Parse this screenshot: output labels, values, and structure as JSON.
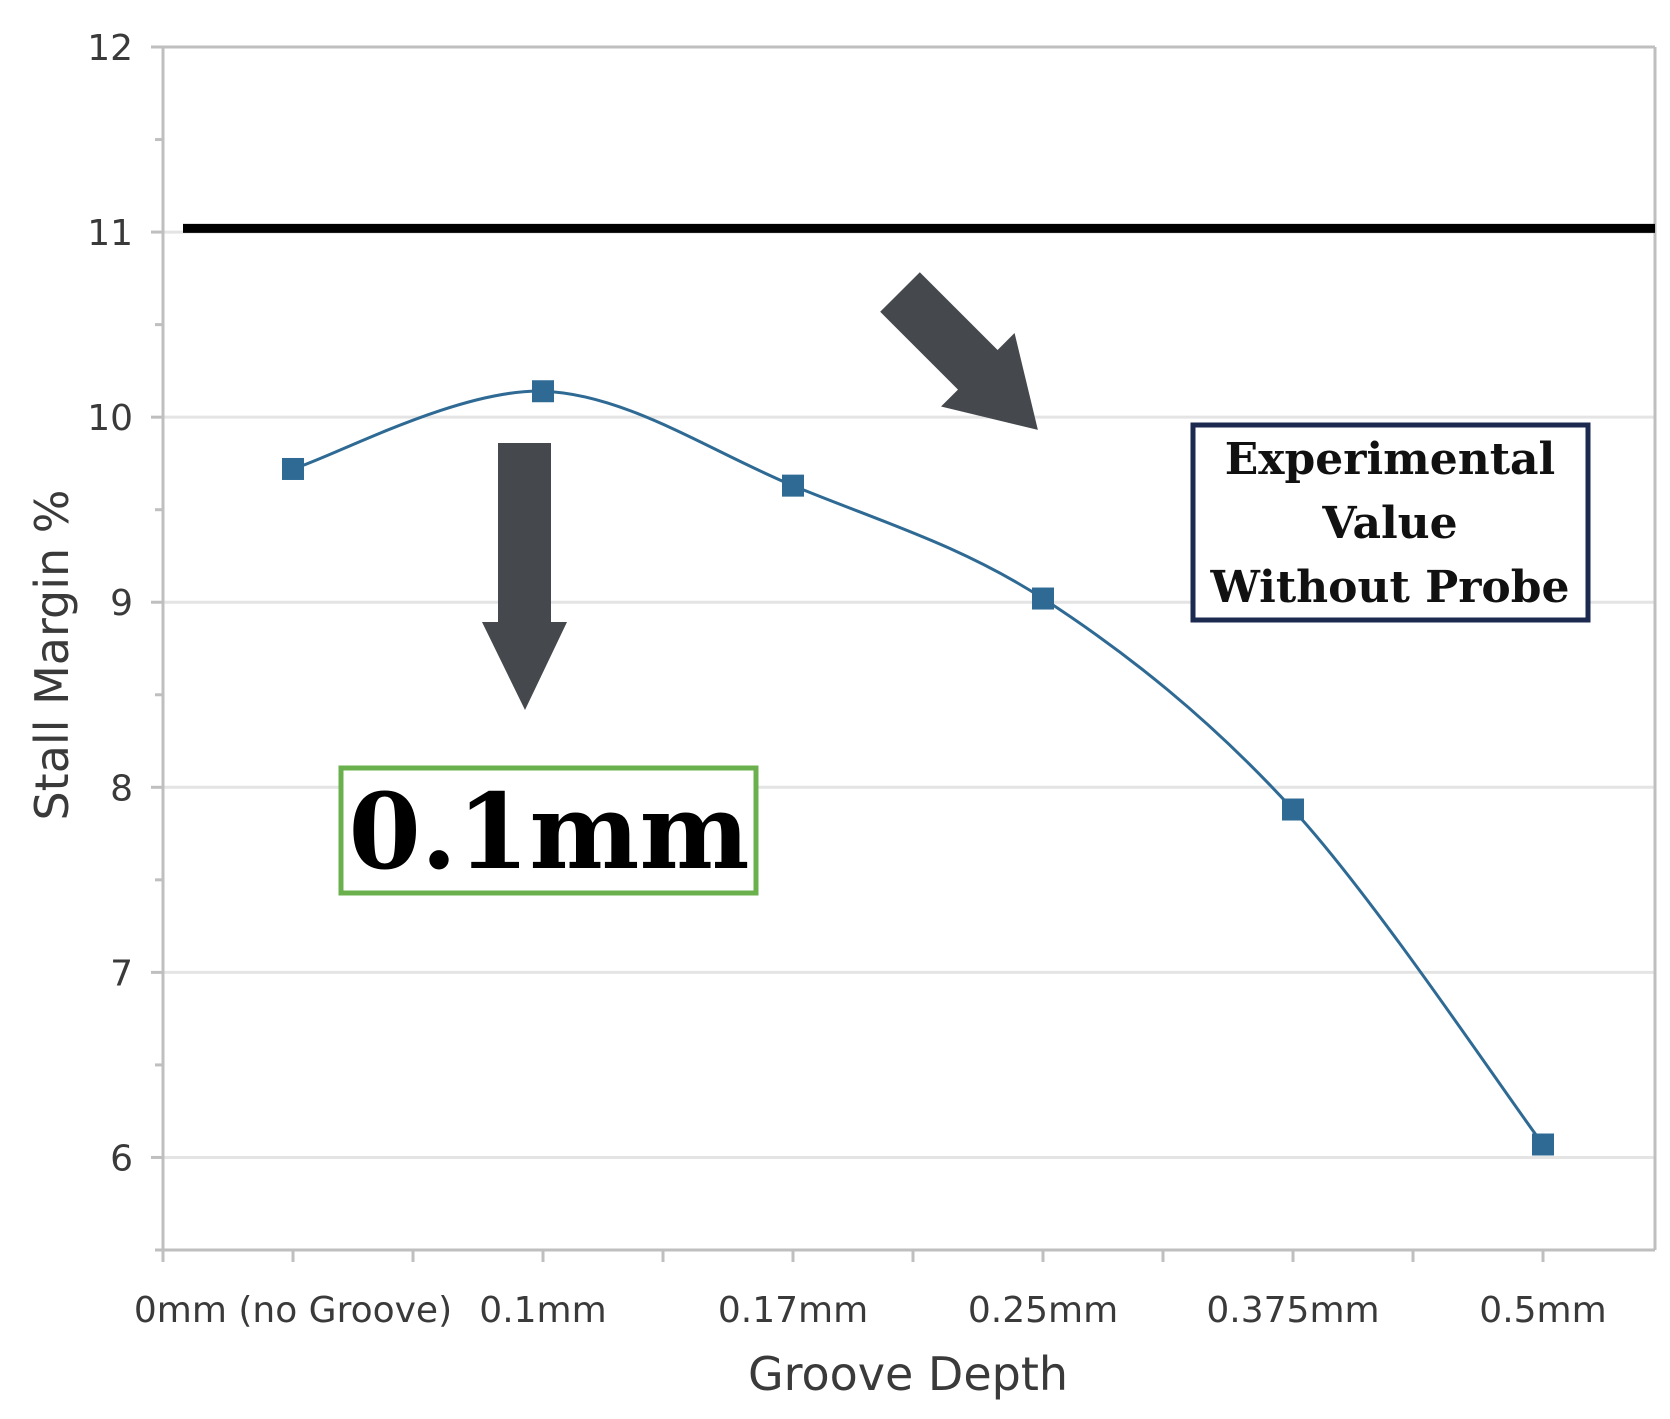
{
  "chart_data": {
    "type": "line",
    "title": "",
    "xlabel": "Groove Depth",
    "ylabel": "Stall Margin %",
    "categories": [
      "0mm (no Groove)",
      "0.1mm",
      "0.17mm",
      "0.25mm",
      "0.375mm",
      "0.5mm"
    ],
    "series": [
      {
        "values": [
          9.72,
          10.14,
          9.63,
          9.02,
          7.88,
          6.07
        ],
        "color": "#2e6a94",
        "marker": "square",
        "smooth": true
      }
    ],
    "reference_line": {
      "value": 11.02,
      "color": "#000000"
    },
    "yticks": [
      6,
      7,
      8,
      9,
      10,
      11,
      12
    ],
    "ylim": [
      5.5,
      12
    ],
    "grid": true,
    "annotations": [
      {
        "id": "optimum",
        "lines": [
          "0.1mm"
        ],
        "border_color": "#6ab04c"
      },
      {
        "id": "experimental",
        "lines": [
          "Experimental",
          "Value",
          "Without Probe"
        ],
        "border_color": "#1c2a4f"
      }
    ],
    "arrow_color": "#45484d"
  }
}
